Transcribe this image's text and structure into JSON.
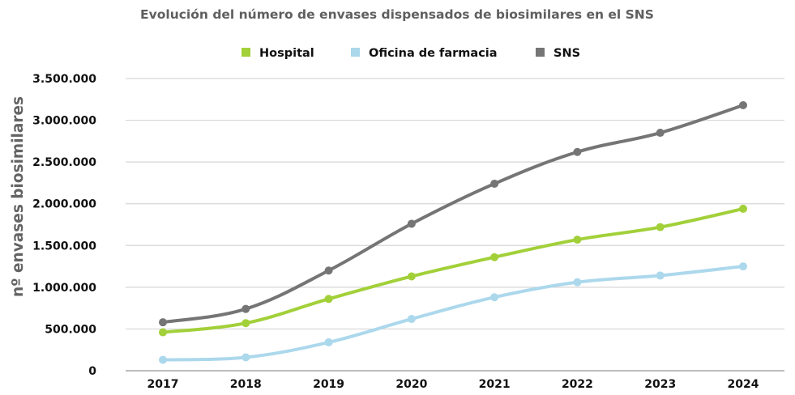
{
  "chart_data": {
    "type": "line",
    "title": "Evolución del número de envases dispensados de biosimilares en el SNS",
    "xlabel": "",
    "ylabel": "nº envases biosimilares",
    "categories": [
      "2017",
      "2018",
      "2019",
      "2020",
      "2021",
      "2022",
      "2023",
      "2024"
    ],
    "ylim": [
      0,
      3500000
    ],
    "yticks": [
      0,
      500000,
      1000000,
      1500000,
      2000000,
      2500000,
      3000000,
      3500000
    ],
    "ytick_labels": [
      "0",
      "500.000",
      "1.000.000",
      "1.500.000",
      "2.000.000",
      "2.500.000",
      "3.000.000",
      "3.500.000"
    ],
    "grid": true,
    "legend_position": "top-center",
    "series": [
      {
        "name": "Hospital",
        "color": "#a2d039",
        "values": [
          460000,
          570000,
          860000,
          1130000,
          1360000,
          1570000,
          1720000,
          1940000
        ]
      },
      {
        "name": "Oficina de farmacia",
        "color": "#acd8ec",
        "values": [
          130000,
          160000,
          340000,
          620000,
          880000,
          1060000,
          1140000,
          1250000
        ]
      },
      {
        "name": "SNS",
        "color": "#757575",
        "values": [
          580000,
          740000,
          1200000,
          1760000,
          2240000,
          2620000,
          2850000,
          3180000
        ]
      }
    ]
  }
}
